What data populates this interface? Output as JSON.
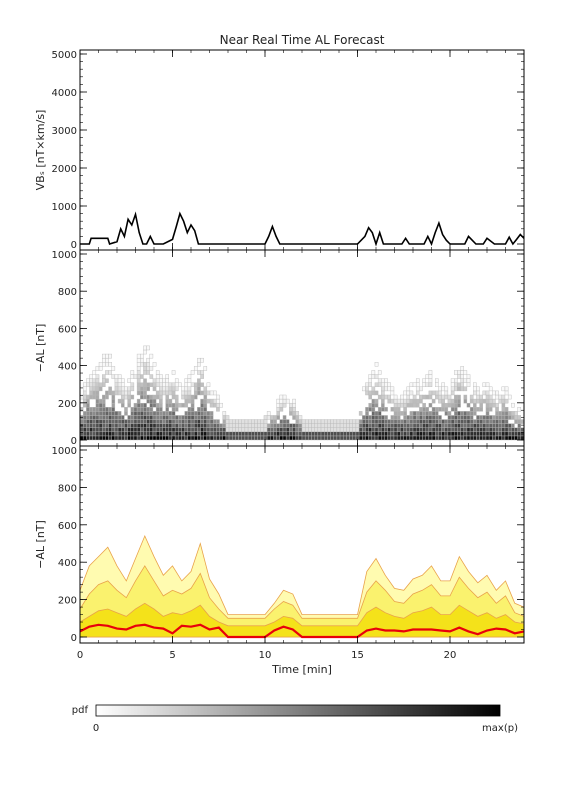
{
  "title": "Near Real Time AL Forecast",
  "colorbar": {
    "label": "pdf",
    "min_label": "0",
    "max_label": "max(p)"
  },
  "colors": {
    "median": "#e8000b",
    "band_light": "#fffbb0",
    "band_mid": "#faf26e",
    "band_dark": "#f4e21a",
    "band_edge": "#e9a24a"
  },
  "chart_data": [
    {
      "type": "line",
      "ylabel": "VBₛ [nT×km/s]",
      "ylim": [
        0,
        5000
      ],
      "yticks": [
        0,
        1000,
        2000,
        3000,
        4000,
        5000
      ],
      "xlim": [
        0,
        24
      ],
      "series": [
        {
          "x": [
            0,
            0.5,
            0.6,
            1.5,
            1.6,
            2.0,
            2.2,
            2.4,
            2.6,
            2.8,
            3.0,
            3.2,
            3.4,
            3.6,
            3.8,
            4.0,
            4.5,
            5.0,
            5.2,
            5.4,
            5.6,
            5.8,
            6.0,
            6.2,
            6.4,
            6.6,
            6.8,
            7.0,
            8.0,
            9.0,
            10.0,
            10.2,
            10.4,
            10.6,
            10.8,
            11.0,
            12.0,
            13.0,
            14.0,
            15.0,
            15.4,
            15.6,
            15.8,
            16.0,
            16.2,
            16.4,
            16.8,
            17.0,
            17.4,
            17.6,
            17.8,
            18.0,
            18.4,
            18.6,
            18.8,
            19.0,
            19.2,
            19.4,
            19.6,
            19.8,
            20.0,
            20.4,
            20.6,
            20.8,
            21.0,
            21.2,
            21.4,
            21.6,
            21.8,
            22.0,
            22.4,
            22.6,
            22.8,
            23.0,
            23.2,
            23.4,
            23.6,
            23.8,
            24.0
          ],
          "values": [
            0,
            0,
            150,
            150,
            0,
            60,
            400,
            200,
            650,
            500,
            780,
            300,
            0,
            0,
            200,
            0,
            0,
            120,
            450,
            800,
            600,
            300,
            500,
            350,
            0,
            0,
            0,
            0,
            0,
            0,
            0,
            200,
            460,
            200,
            0,
            0,
            0,
            0,
            0,
            0,
            200,
            430,
            300,
            0,
            300,
            0,
            0,
            0,
            0,
            150,
            0,
            0,
            0,
            0,
            200,
            0,
            300,
            550,
            250,
            100,
            0,
            0,
            0,
            0,
            200,
            100,
            0,
            0,
            0,
            150,
            0,
            0,
            0,
            0,
            180,
            0,
            120,
            250,
            150
          ]
        }
      ]
    },
    {
      "type": "heatmap",
      "ylabel": "−AL [nT]",
      "ylim": [
        0,
        1000
      ],
      "yticks": [
        0,
        200,
        400,
        600,
        800,
        1000
      ],
      "xlim": [
        0,
        24
      ],
      "x_profile": [
        0,
        0.5,
        1,
        1.5,
        2,
        2.5,
        3,
        3.5,
        4,
        4.5,
        5,
        5.5,
        6,
        6.5,
        7,
        7.5,
        8,
        10,
        10.5,
        11,
        11.5,
        12,
        15,
        15.5,
        16,
        16.5,
        17,
        17.5,
        18,
        18.5,
        19,
        19.5,
        20,
        20.5,
        21,
        21.5,
        22,
        22.5,
        23,
        23.5,
        24
      ],
      "max_extent": [
        250,
        380,
        430,
        480,
        380,
        300,
        420,
        540,
        430,
        330,
        380,
        300,
        350,
        500,
        310,
        230,
        120,
        120,
        180,
        250,
        230,
        120,
        120,
        350,
        420,
        330,
        260,
        250,
        310,
        330,
        380,
        300,
        300,
        430,
        350,
        290,
        330,
        250,
        300,
        180,
        160
      ]
    },
    {
      "type": "area",
      "ylabel": "−AL [nT]",
      "xlabel": "Time [min]",
      "ylim": [
        0,
        1000
      ],
      "yticks": [
        0,
        200,
        400,
        600,
        800,
        1000
      ],
      "xlim": [
        0,
        24
      ],
      "xticks": [
        0,
        5,
        10,
        15,
        20
      ],
      "x": [
        0,
        0.5,
        1,
        1.5,
        2,
        2.5,
        3,
        3.5,
        4,
        4.5,
        5,
        5.5,
        6,
        6.5,
        7,
        7.5,
        8,
        10,
        10.5,
        11,
        11.5,
        12,
        15,
        15.5,
        16,
        16.5,
        17,
        17.5,
        18,
        18.5,
        19,
        19.5,
        20,
        20.5,
        21,
        21.5,
        22,
        22.5,
        23,
        23.5,
        24
      ],
      "series": [
        {
          "values": [
            250,
            380,
            430,
            480,
            380,
            300,
            420,
            540,
            430,
            330,
            380,
            300,
            350,
            500,
            310,
            230,
            120,
            120,
            180,
            250,
            230,
            120,
            120,
            350,
            420,
            330,
            260,
            250,
            310,
            330,
            380,
            300,
            300,
            430,
            350,
            290,
            330,
            250,
            300,
            180,
            160
          ]
        },
        {
          "values": [
            150,
            230,
            280,
            300,
            250,
            210,
            300,
            380,
            300,
            220,
            250,
            230,
            260,
            340,
            210,
            150,
            100,
            100,
            150,
            190,
            170,
            100,
            100,
            240,
            300,
            250,
            190,
            180,
            230,
            250,
            280,
            220,
            220,
            320,
            260,
            210,
            240,
            180,
            220,
            130,
            110
          ]
        },
        {
          "values": [
            80,
            110,
            140,
            150,
            130,
            110,
            150,
            180,
            150,
            110,
            130,
            120,
            140,
            170,
            110,
            80,
            60,
            60,
            80,
            110,
            100,
            60,
            60,
            130,
            160,
            130,
            110,
            100,
            130,
            140,
            160,
            120,
            120,
            170,
            140,
            110,
            130,
            100,
            120,
            80,
            70
          ]
        },
        {
          "name": "median",
          "values": [
            30,
            55,
            65,
            60,
            45,
            40,
            60,
            65,
            50,
            45,
            20,
            60,
            55,
            65,
            40,
            50,
            0,
            0,
            35,
            55,
            40,
            0,
            0,
            35,
            45,
            35,
            35,
            30,
            40,
            40,
            40,
            35,
            30,
            50,
            30,
            15,
            35,
            45,
            40,
            20,
            30
          ]
        }
      ]
    }
  ]
}
